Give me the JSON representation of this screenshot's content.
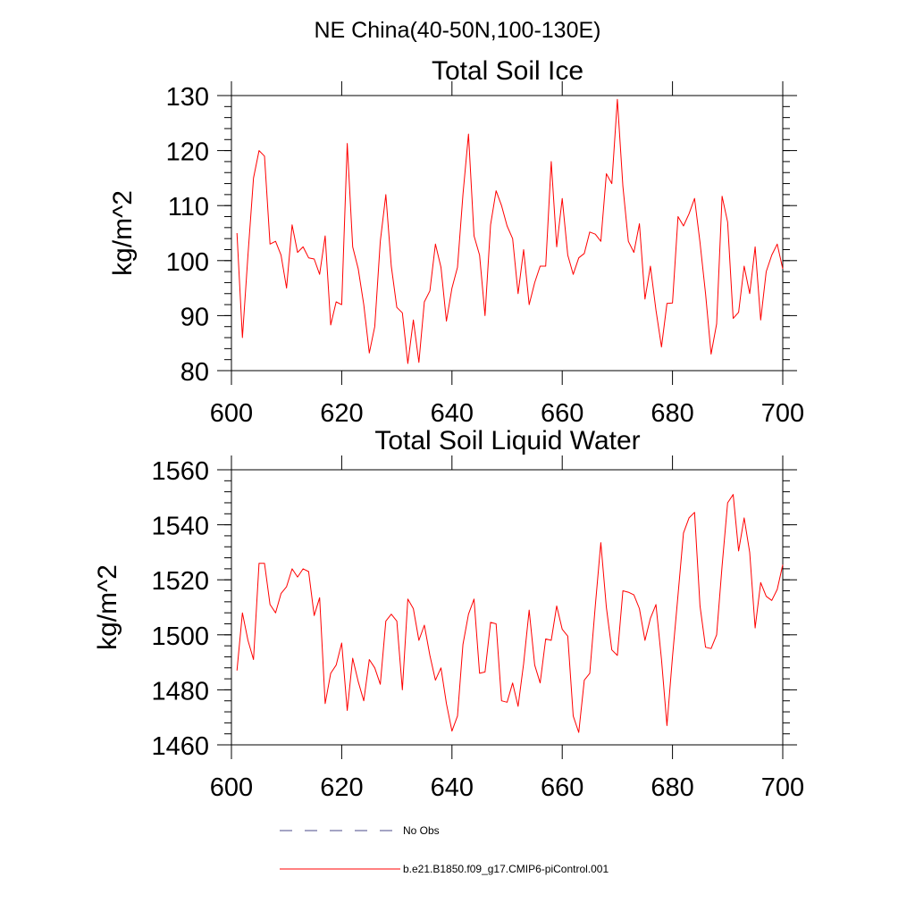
{
  "figure": {
    "suptitle": "NE China(40-50N,100-130E)",
    "legend": [
      {
        "label": "No Obs",
        "style": "dashed",
        "color": "#4a4a8a"
      },
      {
        "label": "b.e21.B1850.f09_g17.CMIP6-piControl.001",
        "style": "solid",
        "color": "#ff0000"
      }
    ]
  },
  "chart_data": [
    {
      "type": "line",
      "title": "Total Soil Ice",
      "xlabel": "",
      "ylabel": "kg/m^2",
      "xlim": [
        600,
        700
      ],
      "ylim": [
        80,
        130
      ],
      "xticks": [
        600,
        620,
        640,
        660,
        680,
        700
      ],
      "yticks": [
        80,
        90,
        100,
        110,
        120,
        130
      ],
      "grid": false,
      "series": [
        {
          "name": "b.e21.B1850.f09_g17.CMIP6-piControl.001",
          "color": "#ff0000",
          "x": [
            601,
            602,
            603,
            604,
            605,
            606,
            607,
            608,
            609,
            610,
            611,
            612,
            613,
            614,
            615,
            616,
            617,
            618,
            619,
            620,
            621,
            622,
            623,
            624,
            625,
            626,
            627,
            628,
            629,
            630,
            631,
            632,
            633,
            634,
            635,
            636,
            637,
            638,
            639,
            640,
            641,
            642,
            643,
            644,
            645,
            646,
            647,
            648,
            649,
            650,
            651,
            652,
            653,
            654,
            655,
            656,
            657,
            658,
            659,
            660,
            661,
            662,
            663,
            664,
            665,
            666,
            667,
            668,
            669,
            670,
            671,
            672,
            673,
            674,
            675,
            676,
            677,
            678,
            679,
            680,
            681,
            682,
            683,
            684,
            685,
            686,
            687,
            688,
            689,
            690,
            691,
            692,
            693,
            694,
            695,
            696,
            697,
            698,
            699,
            700
          ],
          "values": [
            105,
            86,
            101,
            115,
            120,
            119,
            103,
            103.5,
            101,
            95,
            106.5,
            101.5,
            102.5,
            100.5,
            100.3,
            97.5,
            104.5,
            88.3,
            92.5,
            92,
            121.3,
            102.5,
            98.5,
            92,
            83.2,
            88,
            103.5,
            112,
            99,
            91.5,
            90.5,
            81.3,
            89.2,
            81.5,
            92.5,
            94.5,
            103,
            98.8,
            89,
            95,
            98.8,
            112,
            123,
            104.5,
            101,
            90,
            106.5,
            112.7,
            110,
            106.3,
            104,
            94,
            102,
            92,
            96,
            99,
            99,
            118,
            102.5,
            111.3,
            101,
            97.5,
            100.5,
            101.3,
            105.2,
            104.8,
            103.5,
            115.8,
            114,
            129.3,
            113.5,
            103.5,
            101.5,
            106.7,
            93,
            99,
            91,
            84.3,
            92.2,
            92.3,
            108,
            106.3,
            108.5,
            111.3,
            103.3,
            94,
            83,
            88.5,
            111.7,
            107,
            89.5,
            90.6,
            99,
            94,
            102.5,
            89.2,
            98,
            101,
            103,
            98.5
          ]
        }
      ]
    },
    {
      "type": "line",
      "title": "Total Soil Liquid Water",
      "xlabel": "",
      "ylabel": "kg/m^2",
      "xlim": [
        600,
        700
      ],
      "ylim": [
        1460,
        1560
      ],
      "xticks": [
        600,
        620,
        640,
        660,
        680,
        700
      ],
      "yticks": [
        1460,
        1480,
        1500,
        1520,
        1540,
        1560
      ],
      "grid": false,
      "series": [
        {
          "name": "b.e21.B1850.f09_g17.CMIP6-piControl.001",
          "color": "#ff0000",
          "x": [
            601,
            602,
            603,
            604,
            605,
            606,
            607,
            608,
            609,
            610,
            611,
            612,
            613,
            614,
            615,
            616,
            617,
            618,
            619,
            620,
            621,
            622,
            623,
            624,
            625,
            626,
            627,
            628,
            629,
            630,
            631,
            632,
            633,
            634,
            635,
            636,
            637,
            638,
            639,
            640,
            641,
            642,
            643,
            644,
            645,
            646,
            647,
            648,
            649,
            650,
            651,
            652,
            653,
            654,
            655,
            656,
            657,
            658,
            659,
            660,
            661,
            662,
            663,
            664,
            665,
            666,
            667,
            668,
            669,
            670,
            671,
            672,
            673,
            674,
            675,
            676,
            677,
            678,
            679,
            680,
            681,
            682,
            683,
            684,
            685,
            686,
            687,
            688,
            689,
            690,
            691,
            692,
            693,
            694,
            695,
            696,
            697,
            698,
            699,
            700
          ],
          "values": [
            1487,
            1508,
            1498,
            1491,
            1526,
            1526,
            1511,
            1508,
            1515,
            1517.5,
            1524,
            1521,
            1524,
            1523,
            1507,
            1513.5,
            1475,
            1486,
            1489,
            1497,
            1472.5,
            1491.5,
            1483,
            1476,
            1491,
            1488,
            1482,
            1505,
            1507.5,
            1505,
            1480,
            1513,
            1509.5,
            1498,
            1503.5,
            1492.5,
            1483.5,
            1488,
            1475,
            1465,
            1470.5,
            1496.5,
            1507.5,
            1513,
            1486,
            1486.5,
            1504.5,
            1504,
            1476,
            1475.5,
            1482.5,
            1474,
            1489.5,
            1509,
            1489,
            1482.5,
            1498.5,
            1498,
            1510.5,
            1502,
            1499.5,
            1470.5,
            1464.5,
            1483.5,
            1486,
            1510.5,
            1533.5,
            1510,
            1494.5,
            1492.5,
            1516,
            1515.5,
            1514.5,
            1509.5,
            1498,
            1506,
            1511,
            1491,
            1467,
            1492,
            1514.5,
            1537,
            1542.5,
            1544.5,
            1510.5,
            1495.5,
            1495,
            1500,
            1525,
            1548,
            1551,
            1530.5,
            1542.5,
            1530,
            1502.5,
            1519,
            1514,
            1512.5,
            1516.5,
            1525.5
          ]
        }
      ]
    }
  ]
}
